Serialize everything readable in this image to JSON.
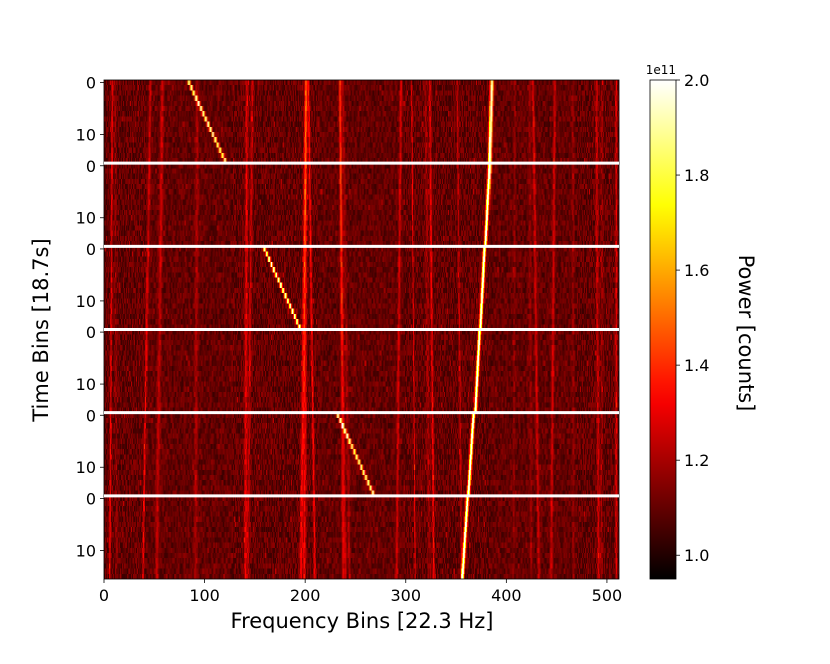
{
  "chart_data": {
    "type": "heatmap",
    "title": "",
    "xlabel": "Frequency Bins [22.3 Hz]",
    "ylabel": "Time Bins [18.7s]",
    "xlim": [
      0,
      512
    ],
    "xticks": [
      0,
      100,
      200,
      300,
      400,
      500
    ],
    "panel_count": 6,
    "time_bins_per_panel": 16,
    "panel_yticks": [
      0,
      10
    ],
    "colormap": "hot",
    "colorbar": {
      "label": "Power [counts]",
      "offset_text": "1e11",
      "vmin": 0.95,
      "vmax": 2.0,
      "ticks": [
        1.0,
        1.2,
        1.4,
        1.6,
        1.8,
        2.0
      ],
      "tick_labels": [
        "1.0",
        "1.2",
        "1.4",
        "1.6",
        "1.8",
        "2.0"
      ]
    },
    "drifting_signal": {
      "description_units": "frequency bin at first and last time bin of each panel",
      "panels": [
        {
          "start": 385,
          "end": 383
        },
        {
          "start": 383,
          "end": 379
        },
        {
          "start": 378,
          "end": 374
        },
        {
          "start": 373,
          "end": 369
        },
        {
          "start": 367,
          "end": 362
        },
        {
          "start": 361,
          "end": 356
        }
      ]
    },
    "injected_signal": {
      "panels": [
        {
          "panel": 0,
          "start": 84,
          "end": 120
        },
        {
          "panel": 2,
          "start": 159,
          "end": 194
        },
        {
          "panel": 4,
          "start": 232,
          "end": 267
        }
      ]
    },
    "background_power_level": 1.1
  }
}
